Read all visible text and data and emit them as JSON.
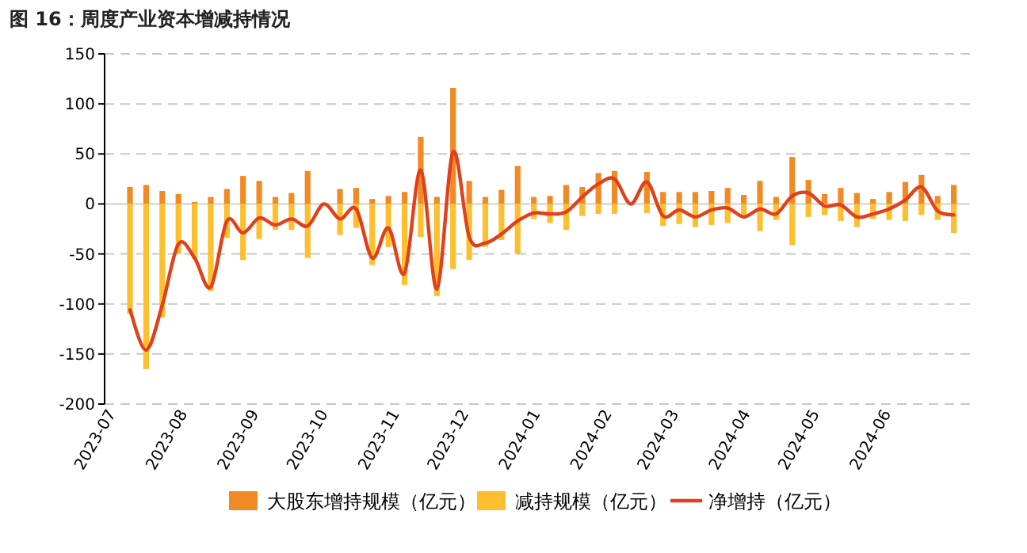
{
  "chart_data": {
    "type": "bar",
    "title": "图 16：周度产业资本增减持情况",
    "stacked": true,
    "x": [
      "2023-07-07",
      "2023-07-14",
      "2023-07-21",
      "2023-07-28",
      "2023-08-04",
      "2023-08-11",
      "2023-08-18",
      "2023-08-25",
      "2023-09-01",
      "2023-09-08",
      "2023-09-15",
      "2023-09-22",
      "2023-09-29",
      "2023-10-06",
      "2023-10-13",
      "2023-10-20",
      "2023-10-27",
      "2023-11-03",
      "2023-11-10",
      "2023-11-17",
      "2023-11-24",
      "2023-12-01",
      "2023-12-08",
      "2023-12-15",
      "2023-12-22",
      "2023-12-29",
      "2024-01-05",
      "2024-01-12",
      "2024-01-19",
      "2024-01-26",
      "2024-02-02",
      "2024-02-09",
      "2024-02-16",
      "2024-02-23",
      "2024-03-01",
      "2024-03-08",
      "2024-03-15",
      "2024-03-22",
      "2024-03-29",
      "2024-04-05",
      "2024-04-12",
      "2024-04-19",
      "2024-04-26",
      "2024-05-03",
      "2024-05-10",
      "2024-05-17",
      "2024-05-24",
      "2024-05-31",
      "2024-06-07",
      "2024-06-14",
      "2024-06-21",
      "2024-06-28"
    ],
    "series": [
      {
        "name": "大股东增持规模（亿元）",
        "color": "#f08a24",
        "values": [
          17,
          19,
          13,
          10,
          2,
          7,
          15,
          28,
          23,
          7,
          11,
          33,
          null,
          15,
          16,
          5,
          8,
          12,
          67,
          7,
          116,
          23,
          7,
          14,
          38,
          7,
          8,
          19,
          17,
          31,
          33,
          null,
          32,
          12,
          12,
          12,
          13,
          16,
          9,
          23,
          7,
          47,
          24,
          10,
          16,
          11,
          5,
          12,
          22,
          29,
          8,
          19
        ]
      },
      {
        "name": "减持规模（亿元）",
        "color": "#fdbf2d",
        "values": [
          -110,
          -165,
          -113,
          -50,
          -55,
          -87,
          -34,
          -56,
          -35,
          -26,
          -26,
          -54,
          null,
          -31,
          -24,
          -61,
          -43,
          -81,
          -33,
          -92,
          -65,
          -56,
          -43,
          -36,
          -50,
          -15,
          -19,
          -26,
          -12,
          -10,
          -10,
          null,
          -9,
          -22,
          -20,
          -23,
          -21,
          -19,
          -14,
          -27,
          -16,
          -41,
          -13,
          -11,
          -17,
          -23,
          -15,
          -16,
          -17,
          -11,
          -16,
          -29
        ]
      },
      {
        "name": "净增持（亿元）",
        "type": "line",
        "color": "#e0401c",
        "values": [
          -106,
          -146,
          -101,
          -40,
          -54,
          -83,
          -17,
          -29,
          -14,
          -21,
          -15,
          -22,
          0,
          -15,
          -5,
          -54,
          -24,
          -69,
          34,
          -85,
          52,
          -33,
          -39,
          -30,
          -17,
          -9,
          -10,
          -8,
          7,
          20,
          25,
          0,
          22,
          -12,
          -6,
          -13,
          -6,
          -4,
          -13,
          -5,
          -10,
          8,
          11,
          -2,
          -1,
          -13,
          -10,
          -5,
          4,
          17,
          -7,
          -11
        ]
      }
    ],
    "xlim": [
      "2023-06-26",
      "2024-07-05"
    ],
    "xticks": [
      {
        "value": "2023-07-01",
        "label": "2023-07"
      },
      {
        "value": "2023-08-01",
        "label": "2023-08"
      },
      {
        "value": "2023-09-01",
        "label": "2023-09"
      },
      {
        "value": "2023-10-01",
        "label": "2023-10"
      },
      {
        "value": "2023-11-01",
        "label": "2023-11"
      },
      {
        "value": "2023-12-01",
        "label": "2023-12"
      },
      {
        "value": "2024-01-01",
        "label": "2024-01"
      },
      {
        "value": "2024-02-01",
        "label": "2024-02"
      },
      {
        "value": "2024-03-01",
        "label": "2024-03"
      },
      {
        "value": "2024-04-01",
        "label": "2024-04"
      },
      {
        "value": "2024-05-01",
        "label": "2024-05"
      },
      {
        "value": "2024-06-01",
        "label": "2024-06"
      }
    ],
    "ylim": [
      -200,
      150
    ],
    "yticks": [
      -200,
      -150,
      -100,
      -50,
      0,
      50,
      100,
      150
    ],
    "grid": "y",
    "legend": "bottom",
    "marker": "none",
    "line_style": "solid"
  }
}
